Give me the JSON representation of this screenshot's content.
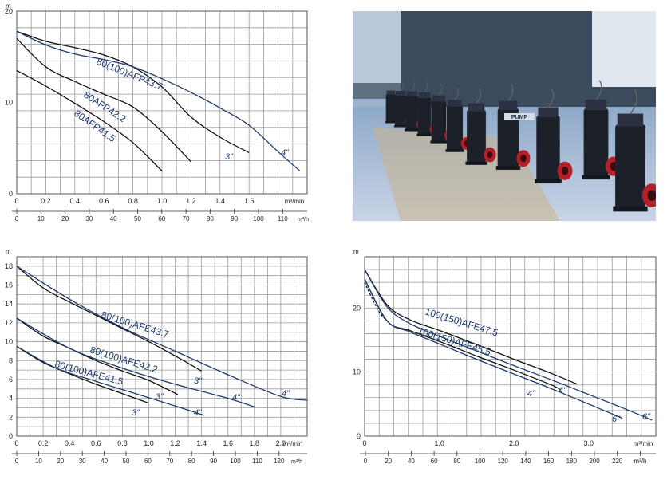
{
  "page": {
    "photo": {
      "description_icon": "pump-photo-icon"
    }
  },
  "chart_data": [
    {
      "type": "line",
      "title": "",
      "ylabel": "m",
      "x_units_top": "m³/min",
      "x_units_bottom": "m³/h",
      "xlim": [
        0,
        2.0
      ],
      "ylim": [
        0,
        20
      ],
      "grid": true,
      "x_ticks": [
        "0",
        "0.2",
        "0.4",
        "0.6",
        "0.8",
        "1.0",
        "1.2",
        "1.4",
        "1.6",
        "m³/min"
      ],
      "x_ticks_h": [
        "0",
        "10",
        "20",
        "30",
        "40",
        "50",
        "60",
        "70",
        "80",
        "90",
        "100",
        "110"
      ],
      "y_ticks": [
        "0",
        "10",
        "20"
      ],
      "series": [
        {
          "name": "80(100)AFP43.7 3\"",
          "label": "3\"",
          "color": "#111111",
          "x": [
            0,
            0.2,
            0.4,
            0.6,
            0.8,
            1.0,
            1.2,
            1.4,
            1.6
          ],
          "y": [
            17.8,
            16.7,
            16.0,
            15.2,
            13.9,
            11.7,
            8.4,
            6.2,
            4.5
          ]
        },
        {
          "name": "80(100)AFP43.7 4\"",
          "label": "4\"",
          "color": "#1d3b6e",
          "x": [
            0,
            0.2,
            0.4,
            0.6,
            0.8,
            1.0,
            1.2,
            1.4,
            1.6,
            1.8,
            1.95
          ],
          "y": [
            17.8,
            16.3,
            15.3,
            14.7,
            13.9,
            12.6,
            11.1,
            9.4,
            7.5,
            4.6,
            2.5
          ]
        },
        {
          "name": "80AFP42.2",
          "label": "80AFP42.2",
          "color": "#111111",
          "x": [
            0,
            0.2,
            0.4,
            0.6,
            0.8,
            1.0,
            1.2
          ],
          "y": [
            17.0,
            13.9,
            12.3,
            10.9,
            9.5,
            6.8,
            3.5
          ]
        },
        {
          "name": "80AFP41.5",
          "label": "80AFP41.5",
          "color": "#111111",
          "x": [
            0,
            0.2,
            0.4,
            0.6,
            0.8,
            1.0
          ],
          "y": [
            13.5,
            11.8,
            9.9,
            7.9,
            5.6,
            2.5
          ]
        }
      ],
      "labels": [
        "80(100)AFP43.7",
        "80AFP42.2",
        "80AFP41.5",
        "3\"",
        "4\""
      ]
    },
    {
      "type": "line",
      "title": "",
      "ylabel": "m",
      "x_units_top": "m³/min",
      "x_units_bottom": "m³/h",
      "xlim": [
        0,
        2.2
      ],
      "ylim": [
        0,
        19
      ],
      "grid": true,
      "x_ticks": [
        "0",
        "0.2",
        "0.4",
        "0.6",
        "0.8",
        "1.0",
        "1.2",
        "1.4",
        "1.6",
        "1.8",
        "2.0",
        "m³/min"
      ],
      "x_ticks_h": [
        "0",
        "10",
        "20",
        "30",
        "40",
        "50",
        "60",
        "70",
        "80",
        "90",
        "100",
        "110",
        "120"
      ],
      "y_ticks": [
        "0",
        "2",
        "4",
        "6",
        "8",
        "10",
        "12",
        "14",
        "16",
        "18"
      ],
      "series": [
        {
          "name": "80(100)AFE43.7 3\"",
          "label": "3\"",
          "color": "#111111",
          "x": [
            0,
            0.2,
            0.4,
            0.6,
            0.8,
            1.0,
            1.2,
            1.4
          ],
          "y": [
            18.0,
            15.7,
            14.2,
            12.8,
            11.4,
            10.0,
            8.5,
            6.9
          ]
        },
        {
          "name": "80(100)AFE43.7 4\"",
          "label": "4\"",
          "color": "#1d3b6e",
          "x": [
            0,
            0.4,
            0.8,
            1.2,
            1.6,
            2.0,
            2.2
          ],
          "y": [
            18.0,
            14.5,
            11.5,
            9.0,
            6.5,
            4.2,
            3.8
          ]
        },
        {
          "name": "80(100)AFE42.2 3\"",
          "label": "3\"",
          "color": "#111111",
          "x": [
            0,
            0.2,
            0.4,
            0.6,
            0.8,
            1.0,
            1.22
          ],
          "y": [
            12.5,
            10.6,
            9.3,
            8.0,
            6.9,
            5.9,
            4.4
          ]
        },
        {
          "name": "80(100)AFE42.2 4\"",
          "label": "4\"",
          "color": "#1d3b6e",
          "x": [
            0,
            0.4,
            0.8,
            1.2,
            1.6,
            1.8
          ],
          "y": [
            12.5,
            9.3,
            7.2,
            5.5,
            4.0,
            3.1
          ]
        },
        {
          "name": "80(100)AFE41.5 3\"",
          "label": "3\"",
          "color": "#111111",
          "x": [
            0,
            0.2,
            0.4,
            0.6,
            0.8,
            1.0
          ],
          "y": [
            9.5,
            7.8,
            6.6,
            5.5,
            4.5,
            3.5
          ]
        },
        {
          "name": "80(100)AFE41.5 4\"",
          "label": "4\"",
          "color": "#1d3b6e",
          "x": [
            0,
            0.3,
            0.6,
            0.9,
            1.2,
            1.42
          ],
          "y": [
            9.5,
            7.2,
            5.8,
            4.5,
            3.2,
            2.2
          ]
        }
      ],
      "labels": [
        "80(100)AFE43.7",
        "80(100)AFE42.2",
        "80(100)AFE41.5",
        "3\"",
        "3\"",
        "3\"",
        "4\"",
        "4\"",
        "4\""
      ]
    },
    {
      "type": "line",
      "title": "",
      "ylabel": "m",
      "x_units_top": "m³/min",
      "x_units_bottom": "m³/h",
      "xlim": [
        0,
        3.9
      ],
      "ylim": [
        0,
        28
      ],
      "grid": true,
      "x_ticks": [
        "0",
        "1.0",
        "2.0",
        "3.0",
        "m³/min"
      ],
      "x_ticks_h": [
        "0",
        "20",
        "40",
        "60",
        "80",
        "100",
        "120",
        "140",
        "160",
        "180",
        "200",
        "220",
        "m³/h"
      ],
      "y_ticks": [
        "0",
        "10",
        "20"
      ],
      "series": [
        {
          "name": "100(150)AFE47.5 4\"",
          "label": "4\"",
          "color": "#111111",
          "x": [
            0,
            0.3,
            0.6,
            1.0,
            1.5,
            2.0,
            2.5,
            2.85
          ],
          "y": [
            26.0,
            20.5,
            18.2,
            16.5,
            14.3,
            12.0,
            9.8,
            8.1
          ]
        },
        {
          "name": "100(150)AFE47.5 6\"",
          "label": "6\"",
          "color": "#1d3b6e",
          "x": [
            0,
            0.3,
            0.6,
            1.0,
            1.5,
            2.0,
            2.5,
            3.0,
            3.5,
            3.85
          ],
          "y": [
            26.0,
            20.2,
            17.6,
            15.6,
            13.3,
            11.0,
            8.8,
            6.5,
            4.2,
            2.5
          ]
        },
        {
          "name": "100(150)AFE45.5 4\"",
          "label": "4\"",
          "color": "#111111",
          "x": [
            0,
            0.3,
            0.6,
            1.0,
            1.5,
            2.0,
            2.5,
            2.63
          ],
          "y": [
            24.5,
            18.0,
            16.5,
            14.8,
            12.5,
            10.3,
            8.0,
            7.2
          ]
        },
        {
          "name": "100(150)AFE45.5 6\"",
          "label": "6\"",
          "color": "#1d3b6e",
          "x": [
            0,
            0.3,
            0.6,
            1.0,
            1.5,
            2.0,
            2.5,
            3.0,
            3.45
          ],
          "y": [
            24.5,
            18.0,
            16.3,
            14.4,
            12.0,
            9.7,
            7.4,
            5.0,
            2.8
          ]
        },
        {
          "name": "100(150)AFE45.5 dashed",
          "label": "",
          "color": "#111111",
          "dashed": true,
          "x": [
            0,
            0.1,
            0.2,
            0.3
          ],
          "y": [
            24.0,
            21.5,
            19.3,
            18.0
          ]
        }
      ],
      "labels": [
        "100(150)AFE47.5",
        "100(150)AFE45.5",
        "4\"",
        "4\"",
        "6\"",
        "6\""
      ]
    }
  ],
  "text": {
    "c1_label_a": "80(100)AFP43.7",
    "c1_label_b": "80AFP42.2",
    "c1_label_c": "80AFP41.5",
    "c1_label_3in": "3\"",
    "c1_label_4in": "4\"",
    "c2_label_a": "80(100)AFE43.7",
    "c2_label_b": "80(100)AFE42.2",
    "c2_label_c": "80(100)AFE41.5",
    "c2_3in_a": "3\"",
    "c2_3in_b": "3\"",
    "c2_3in_c": "3\"",
    "c2_4in_a": "4\"",
    "c2_4in_b": "4\"",
    "c2_4in_c": "4\"",
    "c3_label_a": "100(150)AFE47.5",
    "c3_label_b": "100(150)AFE45.5",
    "c3_4in_a": "4\"",
    "c3_4in_b": "4\"",
    "c3_6in_a": "6\"",
    "c3_6in_b": "6\"",
    "photo_sign": "PUMP"
  }
}
